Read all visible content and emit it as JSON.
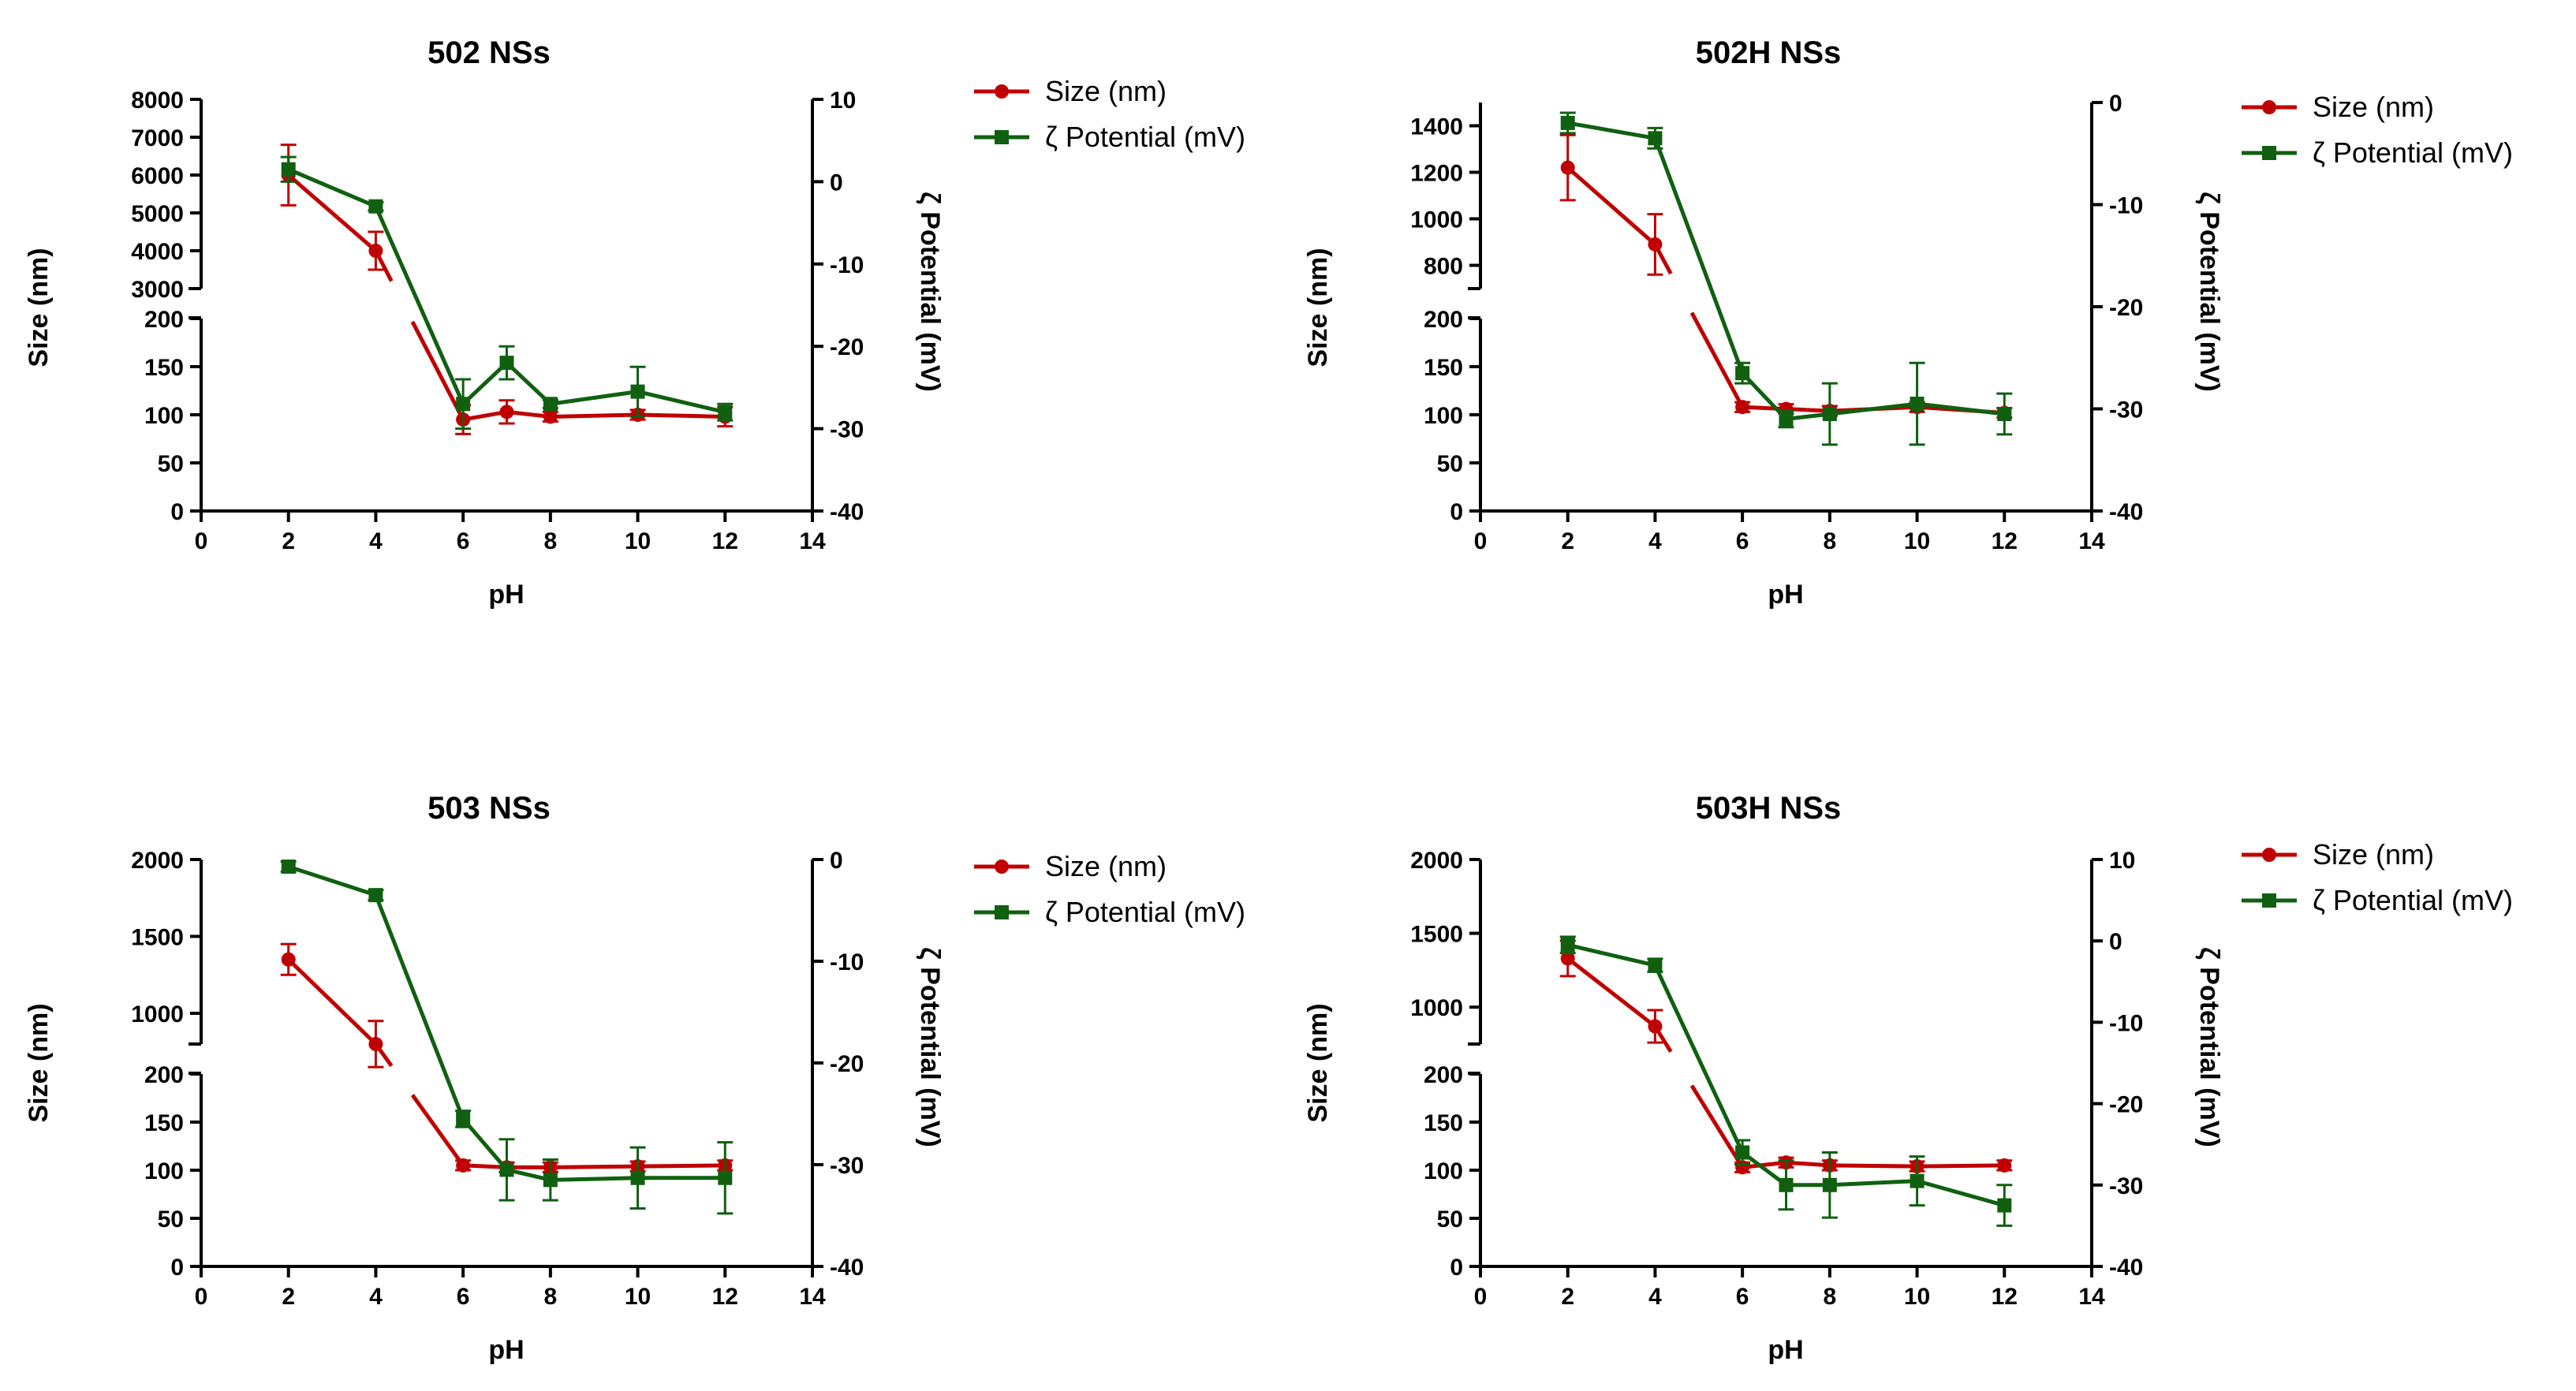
{
  "colors": {
    "size": "#c00000",
    "zeta": "#106010",
    "axis": "#000000"
  },
  "legend": {
    "size_label": "Size (nm)",
    "zeta_label": "ζ Potential (mV)"
  },
  "chart_data": [
    {
      "type": "line",
      "title": "502 NSs",
      "xlabel": "pH",
      "ylabel": "Size (nm)",
      "y2label": "ζ Potential (mV)",
      "xlim": [
        0,
        14
      ],
      "xticks": [
        0,
        2,
        4,
        6,
        8,
        10,
        12,
        14
      ],
      "ylim_lower": [
        0,
        200
      ],
      "yticks_lower": [
        0,
        50,
        100,
        150,
        200
      ],
      "ylim_upper": [
        3000,
        8000
      ],
      "yticks_upper": [
        3000,
        4000,
        5000,
        6000,
        7000,
        8000
      ],
      "y2lim": [
        -40,
        10
      ],
      "y2ticks": [
        -40,
        -30,
        -20,
        -10,
        0,
        10
      ],
      "series": [
        {
          "name": "Size (nm)",
          "axis": "left",
          "x": [
            2,
            4,
            6,
            7,
            8,
            10,
            12
          ],
          "y": [
            6000,
            4000,
            95,
            103,
            98,
            100,
            98
          ],
          "err": [
            800,
            500,
            15,
            12,
            5,
            5,
            10
          ]
        },
        {
          "name": "ζ Potential (mV)",
          "axis": "right",
          "x": [
            2,
            4,
            6,
            7,
            8,
            10,
            12
          ],
          "y": [
            1.5,
            -3,
            -27,
            -22,
            -27,
            -25.5,
            -28
          ],
          "err": [
            1.5,
            0.5,
            3,
            2,
            0.5,
            3,
            1
          ]
        }
      ]
    },
    {
      "type": "line",
      "title": "502H NSs",
      "xlabel": "pH",
      "ylabel": "Size (nm)",
      "y2label": "ζ Potential (mV)",
      "xlim": [
        0,
        14
      ],
      "xticks": [
        0,
        2,
        4,
        6,
        8,
        10,
        12,
        14
      ],
      "ylim_lower": [
        0,
        200
      ],
      "yticks_lower": [
        0,
        50,
        100,
        150,
        200
      ],
      "ylim_upper": [
        700,
        1500
      ],
      "yticks_upper": [
        800,
        1000,
        1200,
        1400
      ],
      "y2lim": [
        -40,
        0
      ],
      "y2ticks": [
        -40,
        -30,
        -20,
        -10,
        0
      ],
      "series": [
        {
          "name": "Size (nm)",
          "axis": "left",
          "x": [
            2,
            4,
            6,
            7,
            8,
            10,
            12
          ],
          "y": [
            1220,
            890,
            108,
            106,
            104,
            108,
            102
          ],
          "err": [
            140,
            130,
            5,
            5,
            5,
            5,
            5
          ]
        },
        {
          "name": "ζ Potential (mV)",
          "axis": "right",
          "x": [
            2,
            4,
            6,
            7,
            8,
            10,
            12
          ],
          "y": [
            -2,
            -3.5,
            -26.5,
            -31,
            -30.5,
            -29.5,
            -30.5
          ],
          "err": [
            1,
            1,
            1,
            0.8,
            3,
            4,
            2
          ]
        }
      ]
    },
    {
      "type": "line",
      "title": "503 NSs",
      "xlabel": "pH",
      "ylabel": "Size (nm)",
      "y2label": "ζ Potential (mV)",
      "xlim": [
        0,
        14
      ],
      "xticks": [
        0,
        2,
        4,
        6,
        8,
        10,
        12,
        14
      ],
      "ylim_lower": [
        0,
        200
      ],
      "yticks_lower": [
        0,
        50,
        100,
        150,
        200
      ],
      "ylim_upper": [
        800,
        2000
      ],
      "yticks_upper": [
        1000,
        1500,
        2000
      ],
      "y2lim": [
        -40,
        0
      ],
      "y2ticks": [
        -40,
        -30,
        -20,
        -10,
        0
      ],
      "series": [
        {
          "name": "Size (nm)",
          "axis": "left",
          "x": [
            2,
            4,
            6,
            7,
            8,
            10,
            12
          ],
          "y": [
            1350,
            800,
            105,
            103,
            103,
            104,
            105
          ],
          "err": [
            100,
            150,
            5,
            5,
            5,
            5,
            5
          ]
        },
        {
          "name": "ζ Potential (mV)",
          "axis": "right",
          "x": [
            2,
            4,
            6,
            7,
            8,
            10,
            12
          ],
          "y": [
            -0.7,
            -3.5,
            -25.5,
            -30.5,
            -31.5,
            -31.3,
            -31.3
          ],
          "err": [
            0.5,
            0.5,
            0.8,
            3,
            2,
            3,
            3.5
          ]
        }
      ]
    },
    {
      "type": "line",
      "title": "503H NSs",
      "xlabel": "pH",
      "ylabel": "Size (nm)",
      "y2label": "ζ Potential (mV)",
      "xlim": [
        0,
        14
      ],
      "xticks": [
        0,
        2,
        4,
        6,
        8,
        10,
        12,
        14
      ],
      "ylim_lower": [
        0,
        200
      ],
      "yticks_lower": [
        0,
        50,
        100,
        150,
        200
      ],
      "ylim_upper": [
        750,
        2000
      ],
      "yticks_upper": [
        1000,
        1500,
        2000
      ],
      "y2lim": [
        -40,
        10
      ],
      "y2ticks": [
        -40,
        -30,
        -20,
        -10,
        0,
        10
      ],
      "series": [
        {
          "name": "Size (nm)",
          "axis": "left",
          "x": [
            2,
            4,
            6,
            7,
            8,
            10,
            12
          ],
          "y": [
            1330,
            870,
            103,
            108,
            105,
            104,
            105
          ],
          "err": [
            120,
            110,
            5,
            5,
            5,
            5,
            5
          ]
        },
        {
          "name": "ζ Potential (mV)",
          "axis": "right",
          "x": [
            2,
            4,
            6,
            7,
            8,
            10,
            12
          ],
          "y": [
            -0.5,
            -3,
            -26,
            -30,
            -30,
            -29.5,
            -32.5
          ],
          "err": [
            1,
            0.8,
            1.5,
            3,
            4,
            3,
            2.5
          ]
        }
      ]
    }
  ]
}
